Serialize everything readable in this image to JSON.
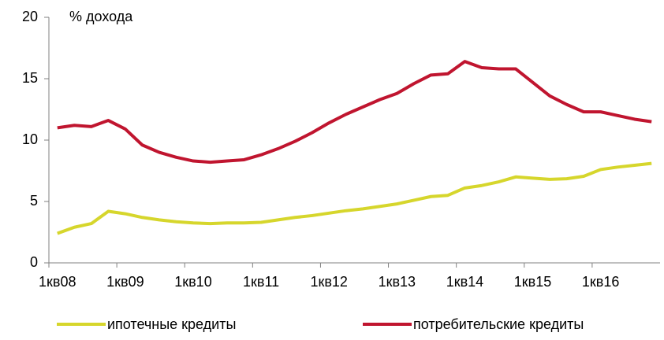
{
  "chart_data": {
    "type": "line",
    "y_label": "% дохода",
    "categories": [
      "1кв08",
      null,
      null,
      null,
      "1кв09",
      null,
      null,
      null,
      "1кв10",
      null,
      null,
      null,
      "1кв11",
      null,
      null,
      null,
      "1кв12",
      null,
      null,
      null,
      "1кв13",
      null,
      null,
      null,
      "1кв14",
      null,
      null,
      null,
      "1кв15",
      null,
      null,
      null,
      "1кв16",
      null,
      null,
      null
    ],
    "series": [
      {
        "name": "ипотечные кредиты",
        "color": "#d6d62c",
        "values": [
          2.4,
          2.9,
          3.2,
          4.2,
          4.0,
          3.7,
          3.5,
          3.35,
          3.25,
          3.2,
          3.25,
          3.25,
          3.3,
          3.5,
          3.7,
          3.85,
          4.05,
          4.25,
          4.4,
          4.6,
          4.8,
          5.1,
          5.4,
          5.5,
          6.1,
          6.3,
          6.6,
          7.0,
          6.9,
          6.8,
          6.85,
          7.05,
          7.6,
          7.8,
          7.95,
          8.1
        ]
      },
      {
        "name": "потребительские кредиты",
        "color": "#c0152f",
        "values": [
          11.0,
          11.2,
          11.1,
          11.6,
          10.9,
          9.6,
          9.0,
          8.6,
          8.3,
          8.2,
          8.3,
          8.4,
          8.8,
          9.3,
          9.9,
          10.6,
          11.4,
          12.1,
          12.7,
          13.3,
          13.8,
          14.6,
          15.3,
          15.4,
          16.4,
          15.9,
          15.8,
          15.8,
          14.7,
          13.6,
          12.9,
          12.3,
          12.3,
          12.0,
          11.7,
          11.5
        ]
      }
    ],
    "ylim": [
      0,
      20
    ],
    "yticks": [
      0,
      5,
      10,
      15,
      20
    ],
    "grid": false,
    "legend": "bottom"
  }
}
